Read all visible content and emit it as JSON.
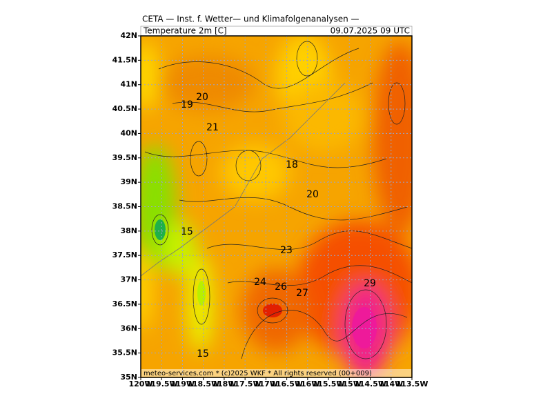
{
  "header": {
    "title": "CETA — Inst. f. Wetter— und Klimafolgenanalysen —",
    "variable": "Temperature 2m [C]",
    "valid_time": "09.07.2025 09 UTC"
  },
  "map": {
    "lat_labels": [
      "42N",
      "41.5N",
      "41N",
      "40.5N",
      "40N",
      "39.5N",
      "39N",
      "38.5N",
      "38N",
      "37.5N",
      "37N",
      "36.5N",
      "36N",
      "35.5N",
      "35N"
    ],
    "lon_labels": [
      "120W",
      "119.5W",
      "119W",
      "118.5W",
      "118W",
      "117.5W",
      "117W",
      "116.5W",
      "116W",
      "115.5W",
      "115W",
      "114.5W",
      "114W",
      "113.5W"
    ],
    "contour_labels": [
      19,
      20,
      21,
      18,
      20,
      15,
      23,
      24,
      26,
      27,
      29,
      15
    ]
  },
  "footer": "meteo-services.com * (c)2025 WKF * All rights reserved (00+009)"
}
